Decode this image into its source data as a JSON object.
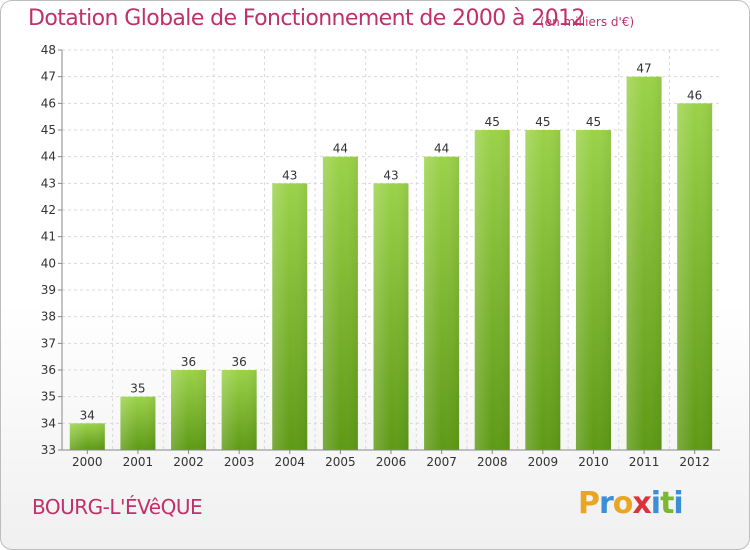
{
  "chart_data": {
    "type": "bar",
    "title": "Dotation Globale de Fonctionnement de 2000 à 2012",
    "unit_label": "(en milliers d'€)",
    "categories": [
      "2000",
      "2001",
      "2002",
      "2003",
      "2004",
      "2005",
      "2006",
      "2007",
      "2008",
      "2009",
      "2010",
      "2011",
      "2012"
    ],
    "values": [
      34,
      35,
      36,
      36,
      43,
      44,
      43,
      44,
      45,
      45,
      45,
      47,
      46
    ],
    "ylim": [
      33,
      48
    ],
    "yticks": [
      "33",
      "34",
      "35",
      "36",
      "37",
      "38",
      "39",
      "40",
      "41",
      "42",
      "43",
      "44",
      "45",
      "46",
      "47",
      "48"
    ],
    "grid": true,
    "bar_color": "#7fbf2e"
  },
  "footer": {
    "place": "BOURG-L'ÉVêQUE",
    "brand_letters": [
      "P",
      "r",
      "o",
      "x",
      "i",
      "t",
      "i"
    ],
    "brand_colors": [
      "#e8a623",
      "#3a8fd6",
      "#e8a623",
      "#d9343c",
      "#3a8fd6",
      "#7ab832",
      "#3a8fd6"
    ]
  }
}
